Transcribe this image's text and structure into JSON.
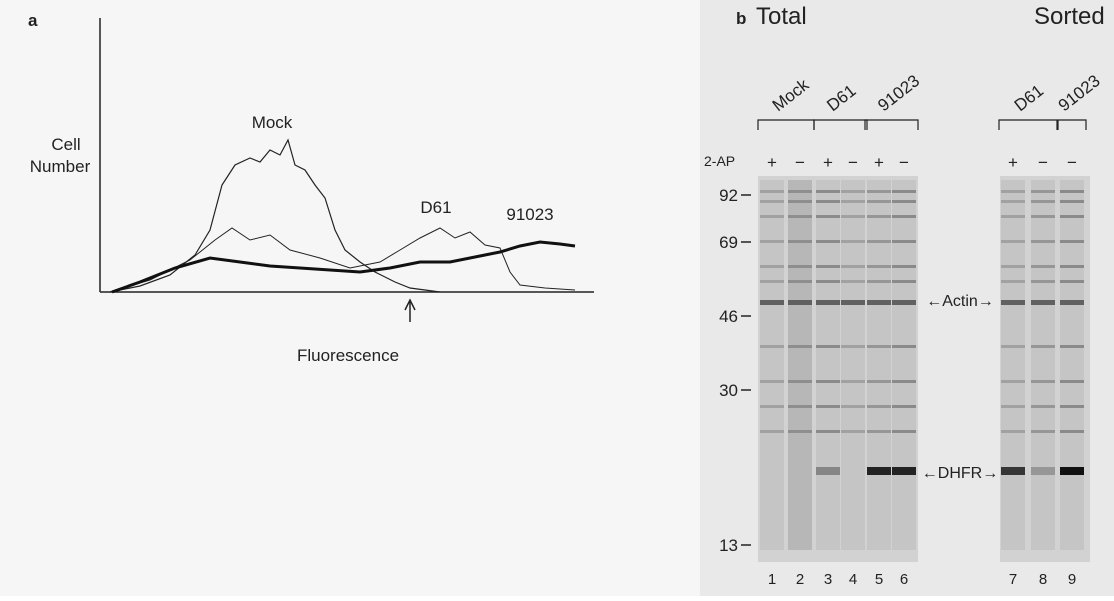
{
  "panel_a": {
    "label": "a",
    "y_axis_label": [
      "Cell",
      "Number"
    ],
    "x_axis_label": "Fluorescence",
    "curve_labels": [
      "Mock",
      "D61",
      "91023"
    ]
  },
  "panel_b": {
    "label": "b",
    "total_title": "Total",
    "sorted_title": "Sorted",
    "row_label": "2-AP",
    "total_groups": [
      "Mock",
      "D61",
      "91023"
    ],
    "sorted_groups": [
      "D61",
      "91023"
    ],
    "total_treatments": [
      "+",
      "−",
      "+",
      "−",
      "+",
      "−"
    ],
    "sorted_treatments": [
      "+",
      "−",
      "−"
    ],
    "markers": [
      "92",
      "69",
      "46",
      "30",
      "13"
    ],
    "band_labels": [
      "←Actin→",
      "←DHFR→"
    ],
    "lanes": [
      "1",
      "2",
      "3",
      "4",
      "5",
      "6",
      "7",
      "8",
      "9"
    ]
  }
}
